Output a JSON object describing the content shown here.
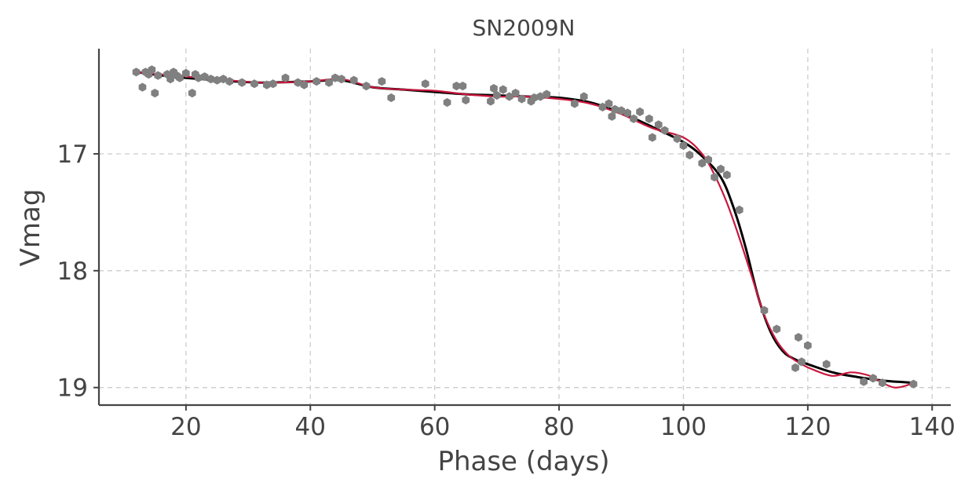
{
  "chart_data": {
    "type": "scatter",
    "title": "SN2009N",
    "xlabel": "Phase (days)",
    "ylabel": "Vmag",
    "xlim": [
      6,
      143
    ],
    "ylim": [
      16.1,
      19.15
    ],
    "y_inverted": true,
    "xticks": [
      20,
      40,
      60,
      80,
      100,
      120,
      140
    ],
    "yticks": [
      17,
      18,
      19
    ],
    "xtick_labels": [
      "20",
      "40",
      "60",
      "80",
      "100",
      "120",
      "140"
    ],
    "ytick_labels": [
      "17",
      "18",
      "19"
    ],
    "grid": true,
    "colors": {
      "points": "#808080",
      "fit_black": "#000000",
      "fit_red": "#c8173d",
      "axes": "#444444"
    },
    "series": [
      {
        "kind": "points",
        "x": [
          12,
          13,
          13.5,
          14,
          14.5,
          15,
          15.5,
          17,
          17.5,
          18,
          18.5,
          19,
          20,
          21,
          21.5,
          22,
          23,
          24,
          25,
          26,
          27,
          29,
          31,
          33,
          34,
          36,
          38,
          39,
          41,
          43,
          44,
          45,
          47,
          49,
          51.5,
          53,
          58.5,
          62,
          63.5,
          64.5,
          65,
          69,
          69.5,
          70,
          71,
          72,
          73,
          74,
          75.5,
          76,
          77,
          78,
          82.5,
          84,
          87,
          88,
          88.5,
          89,
          90,
          91,
          92,
          93,
          94.5,
          95,
          96,
          97,
          99,
          100,
          101,
          103,
          104,
          105,
          106,
          107,
          109,
          113,
          115,
          118,
          118.5,
          119,
          120,
          123,
          129,
          130.5,
          132,
          137
        ],
        "y": [
          16.3,
          16.43,
          16.3,
          16.32,
          16.28,
          16.48,
          16.33,
          16.32,
          16.36,
          16.3,
          16.33,
          16.35,
          16.31,
          16.48,
          16.32,
          16.35,
          16.34,
          16.36,
          16.37,
          16.36,
          16.38,
          16.39,
          16.4,
          16.41,
          16.4,
          16.35,
          16.39,
          16.41,
          16.38,
          16.39,
          16.35,
          16.36,
          16.37,
          16.42,
          16.38,
          16.52,
          16.4,
          16.56,
          16.42,
          16.42,
          16.54,
          16.55,
          16.44,
          16.5,
          16.45,
          16.51,
          16.48,
          16.53,
          16.55,
          16.52,
          16.51,
          16.49,
          16.57,
          16.51,
          16.6,
          16.57,
          16.68,
          16.62,
          16.63,
          16.65,
          16.7,
          16.64,
          16.7,
          16.86,
          16.75,
          16.8,
          16.87,
          16.93,
          17.01,
          17.08,
          17.05,
          17.2,
          17.13,
          17.18,
          17.48,
          18.34,
          18.5,
          18.83,
          18.57,
          18.78,
          18.64,
          18.8,
          18.95,
          18.92,
          18.96,
          18.97
        ]
      },
      {
        "kind": "line",
        "color": "black",
        "x": [
          12,
          18,
          25,
          32,
          40,
          45,
          50,
          55,
          60,
          65,
          70,
          75,
          80,
          85,
          90,
          95,
          100,
          103,
          106,
          108,
          110,
          112,
          114,
          116,
          118,
          120,
          124,
          128,
          132,
          137
        ],
        "y": [
          16.3,
          16.34,
          16.37,
          16.39,
          16.38,
          16.37,
          16.43,
          16.45,
          16.47,
          16.49,
          16.5,
          16.51,
          16.52,
          16.56,
          16.65,
          16.77,
          16.9,
          17.02,
          17.2,
          17.45,
          17.8,
          18.22,
          18.52,
          18.69,
          18.76,
          18.8,
          18.87,
          18.91,
          18.94,
          18.96
        ]
      },
      {
        "kind": "line",
        "color": "red",
        "x": [
          12,
          18,
          25,
          32,
          40,
          45,
          50,
          55,
          60,
          65,
          70,
          75,
          80,
          85,
          90,
          95,
          100,
          103,
          105,
          107,
          109,
          111,
          113,
          115,
          117,
          119,
          121,
          124,
          127,
          130,
          132,
          134,
          136,
          137
        ],
        "y": [
          16.3,
          16.33,
          16.36,
          16.39,
          16.38,
          16.36,
          16.43,
          16.45,
          16.46,
          16.49,
          16.51,
          16.51,
          16.53,
          16.57,
          16.66,
          16.78,
          16.86,
          17.0,
          17.18,
          17.42,
          17.72,
          18.05,
          18.38,
          18.6,
          18.73,
          18.8,
          18.85,
          18.9,
          18.87,
          18.9,
          18.96,
          19.0,
          18.98,
          18.95
        ]
      }
    ]
  }
}
